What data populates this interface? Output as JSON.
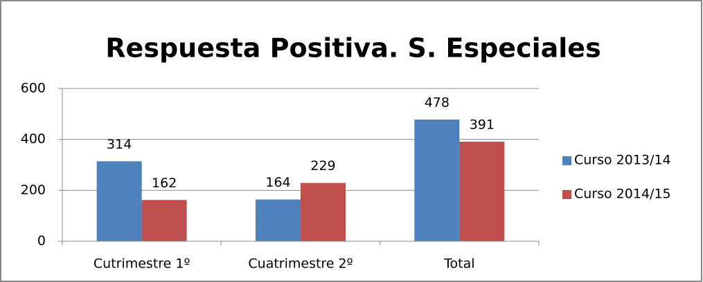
{
  "chart_data": {
    "type": "bar",
    "title": "Respuesta Positiva. S. Especiales",
    "categories": [
      "Cutrimestre 1º",
      "Cuatrimestre 2º",
      "Total"
    ],
    "series": [
      {
        "name": "Curso 2013/14",
        "color": "#4f81bd",
        "values": [
          314,
          164,
          478
        ]
      },
      {
        "name": "Curso 2014/15",
        "color": "#c0504d",
        "values": [
          162,
          229,
          391
        ]
      }
    ],
    "ylim": [
      0,
      600
    ],
    "yticks": [
      0,
      200,
      400,
      600
    ],
    "grid": true,
    "legend": "right",
    "data_labels": true
  }
}
